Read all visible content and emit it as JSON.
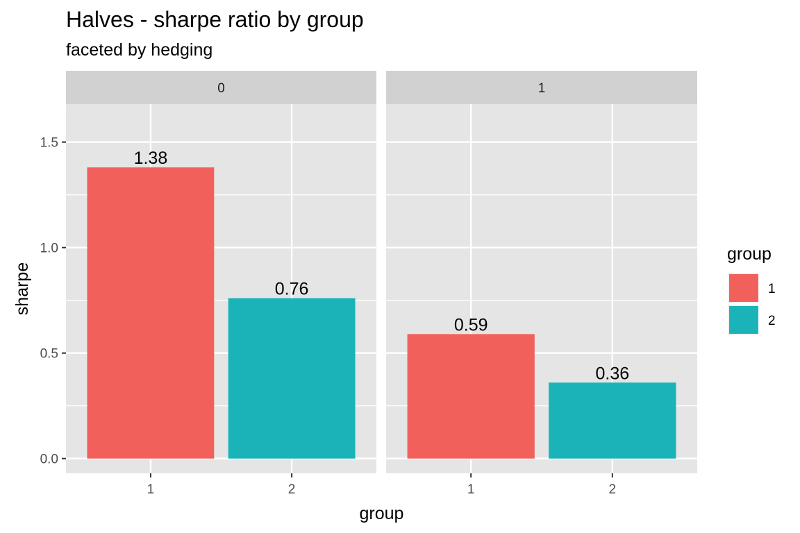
{
  "chart_data": {
    "type": "bar",
    "title": "Halves - sharpe ratio by group",
    "subtitle": "faceted by hedging",
    "xlabel": "group",
    "ylabel": "sharpe",
    "ylim": [
      -0.07,
      1.68
    ],
    "y_ticks": [
      0.0,
      0.5,
      1.0,
      1.5
    ],
    "y_tick_labels": [
      "0.0",
      "0.5",
      "1.0",
      "1.5"
    ],
    "categories": [
      "1",
      "2"
    ],
    "facet_variable": "hedging",
    "facets": [
      {
        "label": "0",
        "values": [
          1.38,
          0.76
        ],
        "value_labels": [
          "1.38",
          "0.76"
        ]
      },
      {
        "label": "1",
        "values": [
          0.59,
          0.36
        ],
        "value_labels": [
          "0.59",
          "0.36"
        ]
      }
    ],
    "legend": {
      "title": "group",
      "position": "right",
      "entries": [
        {
          "label": "1",
          "color": "#F2605C"
        },
        {
          "label": "2",
          "color": "#1AB4B8"
        }
      ]
    },
    "colors": {
      "panel_background": "#E5E5E5",
      "strip_background": "#D1D1D1",
      "grid": "#FFFFFF",
      "text": "#4D4D4D"
    }
  }
}
